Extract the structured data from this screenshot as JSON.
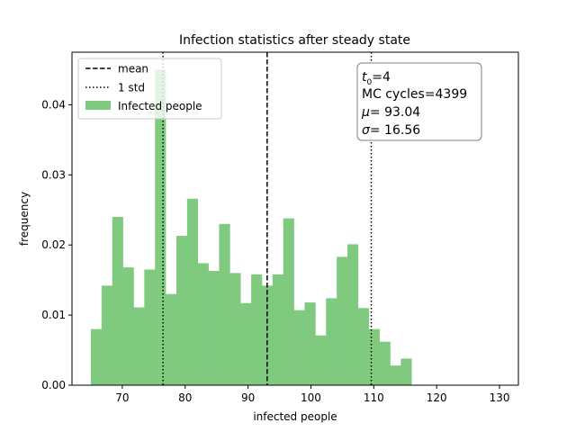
{
  "chart_data": {
    "type": "bar",
    "title": "Infection statistics after steady state",
    "xlabel": "infected people",
    "ylabel": "frequency",
    "xlim": [
      62,
      133
    ],
    "ylim": [
      0,
      0.0475
    ],
    "xticks": [
      70,
      80,
      90,
      100,
      110,
      120,
      130
    ],
    "yticks": [
      0.0,
      0.01,
      0.02,
      0.03,
      0.04
    ],
    "ytick_labels": [
      "0.00",
      "0.01",
      "0.02",
      "0.03",
      "0.04"
    ],
    "bar_color": "#7fca7f",
    "bins": {
      "start": 65,
      "width": 1.7,
      "values": [
        0.008,
        0.0142,
        0.024,
        0.0168,
        0.0111,
        0.0165,
        0.045,
        0.013,
        0.0213,
        0.0266,
        0.0174,
        0.0163,
        0.023,
        0.016,
        0.0117,
        0.0158,
        0.0142,
        0.0158,
        0.0238,
        0.0107,
        0.0118,
        0.0071,
        0.0124,
        0.0183,
        0.0201,
        0.011,
        0.008,
        0.0062,
        0.0028,
        0.0038
      ]
    },
    "series_name": "Infected people",
    "mean": 93.04,
    "std_lines": [
      76.48,
      109.6
    ],
    "legend": {
      "placement": "upper-left",
      "items": [
        {
          "label": "mean",
          "style": "dashed"
        },
        {
          "label": "1 std",
          "style": "dotted"
        },
        {
          "label": "Infected people",
          "style": "patch"
        }
      ]
    },
    "annotation": {
      "placement": "upper-right",
      "t0_label": "t",
      "t0_sub": "0",
      "t0_value": "=4",
      "mc_cycles": "MC cycles=4399",
      "mu_symbol": "μ",
      "mu_value": "= 93.04",
      "sigma_symbol": "σ",
      "sigma_value": "= 16.56"
    }
  }
}
